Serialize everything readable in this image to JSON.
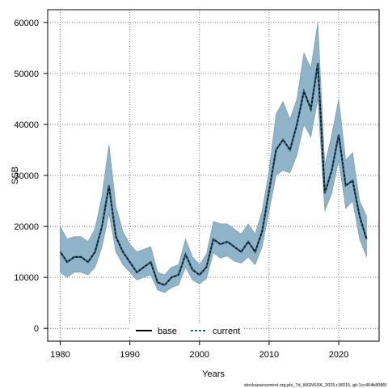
{
  "chart_data": {
    "type": "line",
    "xlabel": "Years",
    "ylabel": "SSB",
    "xlim": [
      1978.2,
      2025.8
    ],
    "ylim": [
      -2500,
      62500
    ],
    "xticks": [
      1980,
      1990,
      2000,
      2010,
      2020
    ],
    "yticks": [
      0,
      10000,
      20000,
      30000,
      40000,
      50000,
      60000
    ],
    "grid": true,
    "legend_position": "bottom-center",
    "band_color": "#8fb4c9",
    "line_color": "#000000",
    "current_color": "#1f5f7a",
    "x": [
      1980,
      1981,
      1982,
      1983,
      1984,
      1985,
      1986,
      1987,
      1988,
      1989,
      1990,
      1991,
      1992,
      1993,
      1994,
      1995,
      1996,
      1997,
      1998,
      1999,
      2000,
      2001,
      2002,
      2003,
      2004,
      2005,
      2006,
      2007,
      2008,
      2009,
      2010,
      2011,
      2012,
      2013,
      2014,
      2015,
      2016,
      2017,
      2018,
      2019,
      2020,
      2021,
      2022,
      2023,
      2024
    ],
    "series": [
      {
        "name": "base",
        "values": [
          15000,
          13000,
          14000,
          14000,
          13000,
          15000,
          20000,
          28000,
          18000,
          15000,
          13000,
          11000,
          12000,
          13000,
          9000,
          8500,
          10000,
          10500,
          14500,
          11500,
          10500,
          12000,
          17500,
          16500,
          17000,
          16000,
          15000,
          17000,
          15000,
          19000,
          27000,
          35000,
          37000,
          35000,
          40000,
          46500,
          43000,
          52000,
          26500,
          31000,
          38000,
          28000,
          29000,
          22000,
          17500
        ]
      },
      {
        "name": "current",
        "values": [
          15000,
          13000,
          14000,
          14000,
          13000,
          15000,
          20000,
          28000,
          18000,
          15000,
          13000,
          11000,
          12000,
          13000,
          9000,
          8500,
          10000,
          10500,
          14500,
          11500,
          10500,
          12000,
          17500,
          16500,
          17000,
          16000,
          15000,
          17000,
          15000,
          19000,
          27000,
          35000,
          37000,
          35000,
          40000,
          46500,
          43000,
          52000,
          26500,
          31000,
          38000,
          28000,
          29000,
          22000,
          17500
        ]
      }
    ],
    "band_upper": [
      20000,
      17500,
      18000,
      18000,
      17000,
      19500,
      26000,
      36000,
      24000,
      19000,
      16500,
      15000,
      15500,
      16000,
      11000,
      10500,
      12000,
      12500,
      17500,
      14000,
      12500,
      14500,
      21000,
      20500,
      20500,
      19500,
      18500,
      20500,
      18500,
      23000,
      31000,
      42000,
      44500,
      41000,
      45000,
      54000,
      51000,
      60000,
      32000,
      38000,
      45000,
      33000,
      34500,
      25000,
      22000
    ],
    "band_lower": [
      11000,
      10000,
      11000,
      11000,
      10500,
      12000,
      16000,
      22500,
      15000,
      12500,
      11000,
      9500,
      10000,
      10500,
      7500,
      7000,
      8000,
      8500,
      12000,
      9500,
      8700,
      9800,
      14800,
      13800,
      14200,
      13200,
      12800,
      14000,
      12500,
      16000,
      23000,
      30000,
      31000,
      30500,
      34000,
      40000,
      37500,
      45000,
      23000,
      26500,
      33000,
      23500,
      25000,
      17500,
      14000
    ]
  },
  "legend": {
    "base_label": "base",
    "current_label": "current"
  },
  "footer": {
    "text": "stockassessment.org,ple_7d_WGNSSK_2025,r18015, git:1cc464b8086f"
  }
}
